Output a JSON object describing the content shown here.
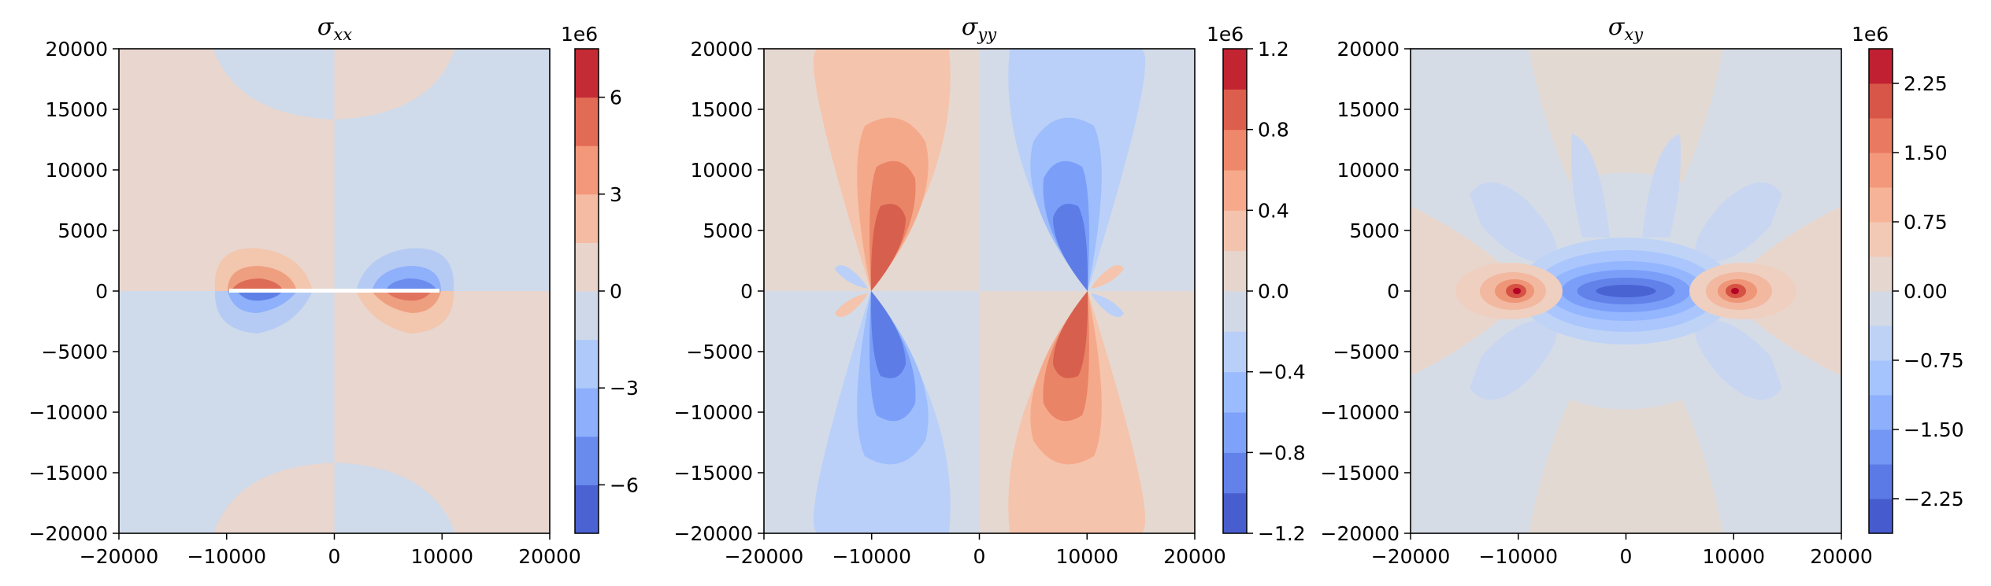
{
  "colors": {
    "background": "#ffffff",
    "axis": "#000000",
    "cmap_coolwarm": [
      "#3b4cc0",
      "#5977e3",
      "#7b9ff9",
      "#9ebeff",
      "#c0d4f5",
      "#dddcdc",
      "#f2cbb7",
      "#f7ac8e",
      "#ee8468",
      "#d65244",
      "#b40426"
    ]
  },
  "chart_data": [
    {
      "type": "heatmap",
      "title_base": "σ",
      "title_sub": "xx",
      "xlim": [
        -20000,
        20000
      ],
      "ylim": [
        -20000,
        20000
      ],
      "x_ticks": [
        -20000,
        -10000,
        0,
        10000,
        20000
      ],
      "x_tick_labels": [
        "−20000",
        "−10000",
        "0",
        "10000",
        "20000"
      ],
      "y_ticks": [
        -20000,
        -15000,
        -10000,
        -5000,
        0,
        5000,
        10000,
        15000,
        20000
      ],
      "y_tick_labels": [
        "−20000",
        "−15000",
        "−10000",
        "−5000",
        "0",
        "5000",
        "10000",
        "15000",
        "20000"
      ],
      "colorbar": {
        "scale_label": "1e6",
        "range": [
          -7.5,
          7.5
        ],
        "levels": [
          -7.5,
          -6,
          -4.5,
          -3,
          -1.5,
          0,
          1.5,
          3,
          4.5,
          6,
          7.5
        ],
        "ticks": [
          -6,
          -3,
          0,
          3,
          6
        ],
        "tick_labels": [
          "−6",
          "−3",
          "0",
          "3",
          "6"
        ]
      },
      "grid": false
    },
    {
      "type": "heatmap",
      "title_base": "σ",
      "title_sub": "yy",
      "xlim": [
        -20000,
        20000
      ],
      "ylim": [
        -20000,
        20000
      ],
      "x_ticks": [
        -20000,
        -10000,
        0,
        10000,
        20000
      ],
      "x_tick_labels": [
        "−20000",
        "−10000",
        "0",
        "10000",
        "20000"
      ],
      "y_ticks": [
        -20000,
        -15000,
        -10000,
        -5000,
        0,
        5000,
        10000,
        15000,
        20000
      ],
      "y_tick_labels": [
        "−20000",
        "−15000",
        "−10000",
        "−5000",
        "0",
        "5000",
        "10000",
        "15000",
        "20000"
      ],
      "colorbar": {
        "scale_label": "1e6",
        "range": [
          -1.2,
          1.2
        ],
        "levels": [
          -1.2,
          -1.0,
          -0.8,
          -0.6,
          -0.4,
          -0.2,
          0.0,
          0.2,
          0.4,
          0.6,
          0.8,
          1.0,
          1.2
        ],
        "ticks": [
          -1.2,
          -0.8,
          -0.4,
          0.0,
          0.4,
          0.8,
          1.2
        ],
        "tick_labels": [
          "−1.2",
          "−0.8",
          "−0.4",
          "0.0",
          "0.4",
          "0.8",
          "1.2"
        ]
      },
      "grid": false
    },
    {
      "type": "heatmap",
      "title_base": "σ",
      "title_sub": "xy",
      "xlim": [
        -20000,
        20000
      ],
      "ylim": [
        -20000,
        20000
      ],
      "x_ticks": [
        -20000,
        -10000,
        0,
        10000,
        20000
      ],
      "x_tick_labels": [
        "−20000",
        "−10000",
        "0",
        "10000",
        "20000"
      ],
      "y_ticks": [
        -20000,
        -15000,
        -10000,
        -5000,
        0,
        5000,
        10000,
        15000,
        20000
      ],
      "y_tick_labels": [
        "−20000",
        "−15000",
        "−10000",
        "−5000",
        "0",
        "5000",
        "10000",
        "15000",
        "20000"
      ],
      "colorbar": {
        "scale_label": "1e6",
        "range": [
          -2.625,
          2.625
        ],
        "levels": [
          -2.625,
          -2.25,
          -1.875,
          -1.5,
          -1.125,
          -0.75,
          -0.375,
          0.0,
          0.375,
          0.75,
          1.125,
          1.5,
          1.875,
          2.25,
          2.625
        ],
        "ticks": [
          -2.25,
          -1.5,
          -0.75,
          0.0,
          0.75,
          1.5,
          2.25
        ],
        "tick_labels": [
          "−2.25",
          "−1.50",
          "−0.75",
          "0.00",
          "0.75",
          "1.50",
          "2.25"
        ]
      },
      "grid": false
    }
  ]
}
